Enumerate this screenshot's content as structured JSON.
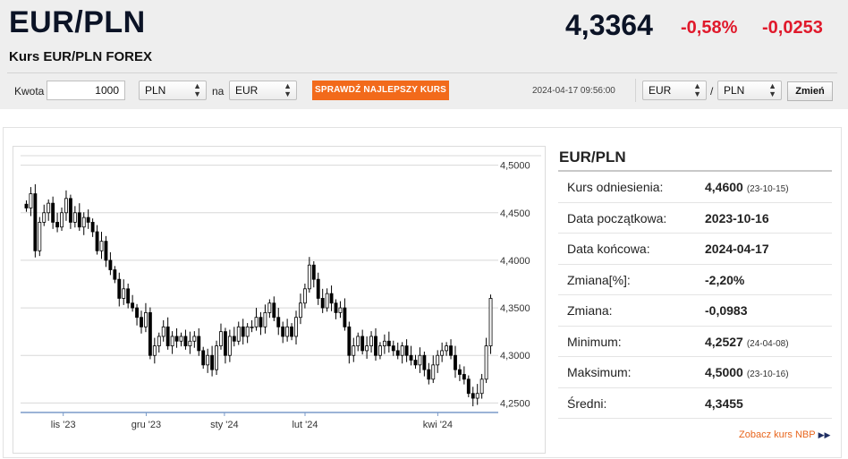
{
  "header": {
    "title": "EUR/PLN",
    "subtitle": "Kurs EUR/PLN FOREX",
    "price": "4,3364",
    "change_pct": "-0,58%",
    "change_abs": "-0,0253"
  },
  "colors": {
    "accent": "#f26a1b",
    "negative": "#e0192b",
    "title": "#0b1326",
    "nbp_link": "#e8651c"
  },
  "converter": {
    "amount_label": "Kwota",
    "amount_value": "1000",
    "from_currency": "PLN",
    "to_label": "na",
    "to_currency": "EUR",
    "best_rate_button": "SPRAWDŹ NAJLEPSZY KURS"
  },
  "timestamp": "2024-04-17 09:56:00",
  "pair_select": {
    "base": "EUR",
    "slash": "/",
    "quote": "PLN",
    "change_button": "Zmień"
  },
  "info": {
    "title": "EUR/PLN",
    "rows": [
      {
        "label": "Kurs odniesienia:",
        "value": "4,4600",
        "date": "(23-10-15)"
      },
      {
        "label": "Data początkowa:",
        "value": "2023-10-16",
        "date": ""
      },
      {
        "label": "Data końcowa:",
        "value": "2024-04-17",
        "date": ""
      },
      {
        "label": "Zmiana[%]:",
        "value": "-2,20%",
        "date": ""
      },
      {
        "label": "Zmiana:",
        "value": "-0,0983",
        "date": ""
      },
      {
        "label": "Minimum:",
        "value": "4,2527",
        "date": "(24-04-08)"
      },
      {
        "label": "Maksimum:",
        "value": "4,5000",
        "date": "(23-10-16)"
      },
      {
        "label": "Średni:",
        "value": "4,3455",
        "date": ""
      }
    ],
    "nbp_link": "Zobacz kurs NBP",
    "nbp_icon": "double-chevron-right-icon"
  },
  "chart_data": {
    "type": "candlestick",
    "x_tick_labels": [
      "lis '23",
      "gru '23",
      "sty '24",
      "lut '24",
      "kwi '24"
    ],
    "y_tick_labels": [
      "4,5000",
      "4,4500",
      "4,4000",
      "4,3500",
      "4,3000",
      "4,2500"
    ],
    "y_ticks": [
      4.5,
      4.45,
      4.4,
      4.35,
      4.3,
      4.25
    ],
    "ylim": [
      4.24,
      4.51
    ],
    "grid": true,
    "y_axis_position": "right",
    "close_series": [
      4.455,
      4.47,
      4.41,
      4.44,
      4.45,
      4.46,
      4.44,
      4.435,
      4.45,
      4.465,
      4.44,
      4.45,
      4.435,
      4.445,
      4.44,
      4.43,
      4.41,
      4.42,
      4.4,
      4.39,
      4.38,
      4.36,
      4.37,
      4.355,
      4.35,
      4.34,
      4.33,
      4.345,
      4.3,
      4.31,
      4.32,
      4.33,
      4.31,
      4.32,
      4.315,
      4.32,
      4.31,
      4.315,
      4.32,
      4.305,
      4.29,
      4.3,
      4.285,
      4.31,
      4.325,
      4.3,
      4.32,
      4.315,
      4.33,
      4.32,
      4.33,
      4.33,
      4.34,
      4.33,
      4.345,
      4.355,
      4.34,
      4.33,
      4.32,
      4.33,
      4.32,
      4.34,
      4.355,
      4.37,
      4.395,
      4.38,
      4.36,
      4.35,
      4.365,
      4.355,
      4.345,
      4.35,
      4.33,
      4.3,
      4.31,
      4.32,
      4.305,
      4.31,
      4.32,
      4.3,
      4.31,
      4.315,
      4.31,
      4.305,
      4.3,
      4.31,
      4.3,
      4.295,
      4.29,
      4.3,
      4.285,
      4.275,
      4.29,
      4.3,
      4.305,
      4.31,
      4.3,
      4.285,
      4.28,
      4.275,
      4.26,
      4.255,
      4.26,
      4.275,
      4.31,
      4.36
    ]
  }
}
